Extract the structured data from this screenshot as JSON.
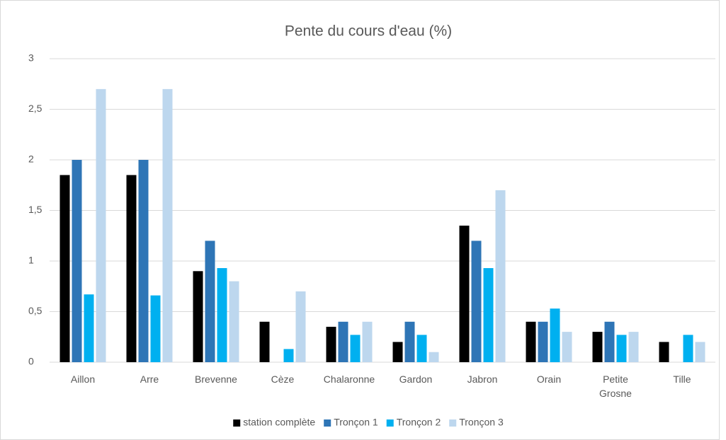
{
  "chart_data": {
    "type": "bar",
    "title": "Pente du cours d'eau (%)",
    "categories": [
      "Aillon",
      "Arre",
      "Brevenne",
      "Cèze",
      "Chalaronne",
      "Gardon",
      "Jabron",
      "Orain",
      "Petite Grosne",
      "Tille"
    ],
    "series": [
      {
        "name": "station complète",
        "color": "#000000",
        "values": [
          1.85,
          1.85,
          0.9,
          0.4,
          0.35,
          0.2,
          1.35,
          0.4,
          0.3,
          0.2
        ]
      },
      {
        "name": "Tronçon 1",
        "color": "#2e75b6",
        "values": [
          2,
          2,
          1.2,
          null,
          0.4,
          0.4,
          1.2,
          0.4,
          0.4,
          null
        ]
      },
      {
        "name": "Tronçon 2",
        "color": "#00b0f0",
        "values": [
          0.67,
          0.66,
          0.93,
          0.13,
          0.27,
          0.27,
          0.93,
          0.53,
          0.27,
          0.27
        ]
      },
      {
        "name": "Tronçon 3",
        "color": "#bdd7ee",
        "values": [
          2.7,
          2.7,
          0.8,
          0.7,
          0.4,
          0.1,
          1.7,
          0.3,
          0.3,
          0.2
        ]
      }
    ],
    "ylim": [
      0,
      3
    ],
    "yticks": [
      0,
      {
        "value": 0.5,
        "label": "0,5"
      },
      1,
      {
        "value": 1.5,
        "label": "1,5"
      },
      2,
      {
        "value": 2.5,
        "label": "2,5"
      },
      3
    ],
    "grid": true,
    "legend": "bottom"
  }
}
